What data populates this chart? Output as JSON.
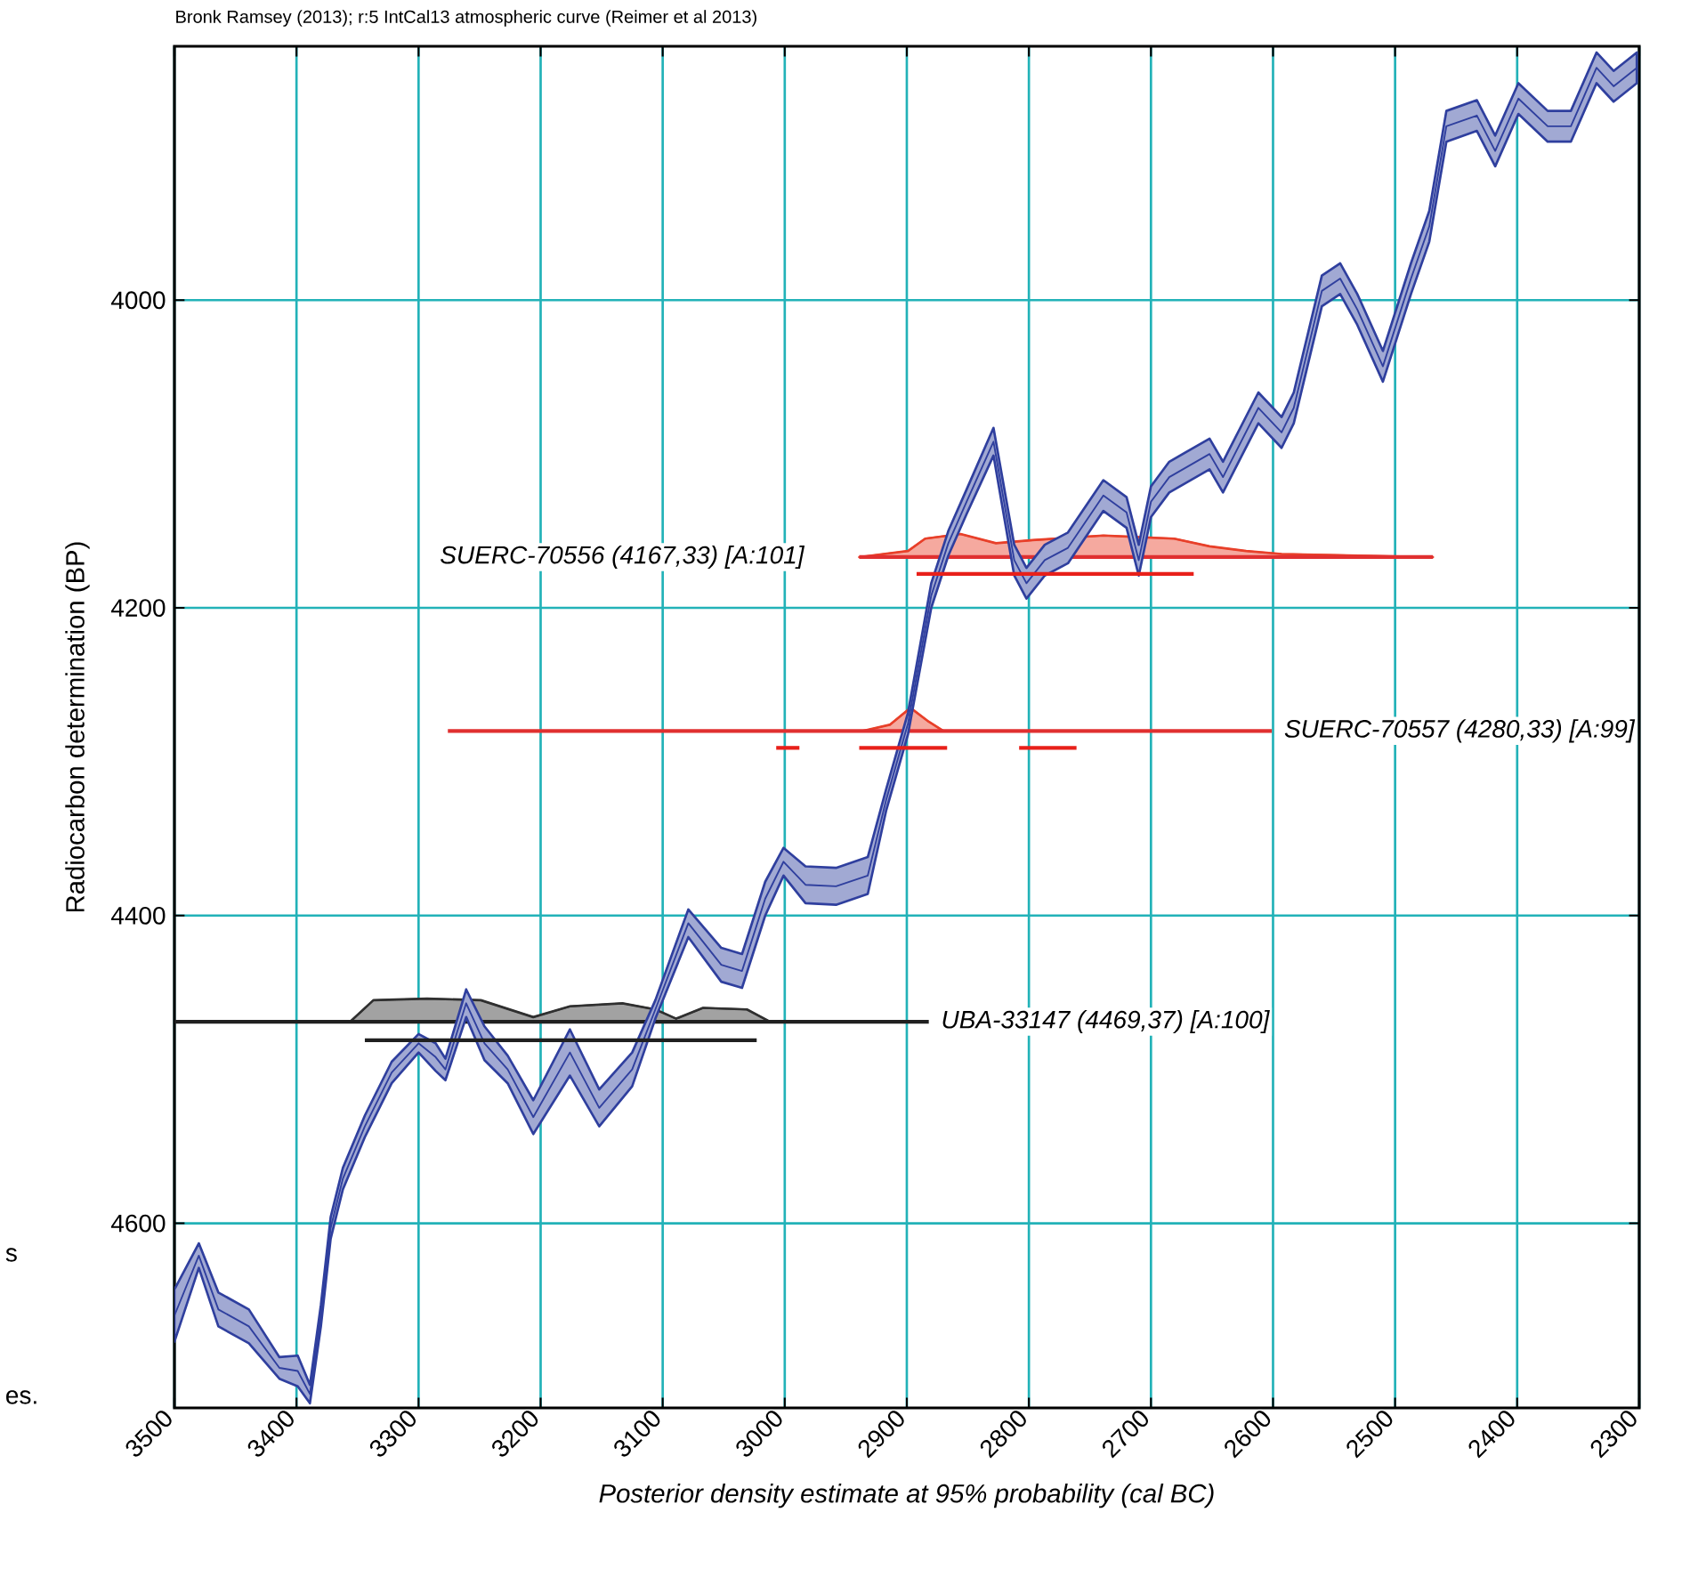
{
  "chart_data": {
    "type": "line",
    "title": "Bronk Ramsey (2013); r:5 IntCal13 atmospheric curve (Reimer et al 2013)",
    "xlabel": "Posterior density estimate at 95% probability (cal BC)",
    "ylabel": "Radiocarbon determination (BP)",
    "xlim": [
      3500,
      2300
    ],
    "xticks": [
      3500,
      3400,
      3300,
      3200,
      3100,
      3000,
      2900,
      2800,
      2700,
      2600,
      2500,
      2400,
      2300
    ],
    "ylim": [
      4720,
      3835
    ],
    "yticks": [
      4000,
      4200,
      4400,
      4600
    ],
    "grid": true,
    "annotations": [
      {
        "text": "UBA-33147 (4469,37) [A:100]",
        "x": 2882,
        "y": 4469
      },
      {
        "text": "SUERC-70557 (4280,33) [A:99]",
        "x": 2601,
        "y": 4280
      },
      {
        "text": "SUERC-70556 (4167,33) [A:101]",
        "x": 2939,
        "y": 4167
      },
      "s",
      "es."
    ],
    "series": [
      {
        "color": "#303030",
        "x": [
          3356,
          3337,
          3293,
          3249,
          3206,
          3176,
          3133,
          3106,
          3089,
          3067,
          3031,
          3012
        ],
        "values": [
          4469,
          4455,
          4454,
          4455,
          4466,
          4459,
          4457,
          4461,
          4467,
          4460,
          4461,
          4469
        ],
        "lower": [
          4469,
          4455,
          4454,
          4455,
          4466,
          4459,
          4457,
          4461,
          4467,
          4460,
          4461,
          4469
        ],
        "upper": [
          4469,
          4469,
          4469,
          4469,
          4469,
          4469,
          4469,
          4469,
          4469,
          4469,
          4469,
          4469
        ]
      },
      {
        "color": "#e8402a",
        "x": [
          2936,
          2914,
          2897,
          2882,
          2870
        ],
        "values": [
          4280,
          4276,
          4265,
          4274,
          4280
        ],
        "lower": [
          4280,
          4276,
          4265,
          4274,
          4280
        ],
        "upper": [
          4280,
          4280,
          4280,
          4280,
          4280
        ]
      },
      {
        "color": "#e8402a",
        "x": [
          2939,
          2899,
          2885,
          2856,
          2827,
          2797,
          2739,
          2681,
          2652,
          2622,
          2593,
          2469
        ],
        "values": [
          4167,
          4163,
          4155,
          4152,
          4158,
          4156,
          4153,
          4155,
          4160,
          4163,
          4165,
          4167
        ],
        "lower": [
          4167,
          4163,
          4155,
          4152,
          4158,
          4156,
          4153,
          4155,
          4160,
          4163,
          4165,
          4167
        ],
        "upper": [
          4167,
          4167,
          4167,
          4167,
          4167,
          4167,
          4167,
          4167,
          4167,
          4167,
          4167,
          4167
        ]
      },
      {
        "color": "#202020",
        "x": [
          3500,
          2882
        ],
        "values": [
          4469,
          4469
        ]
      },
      {
        "color": "#e03030",
        "x": [
          3276,
          2601
        ],
        "values": [
          4280,
          4280
        ]
      },
      {
        "color": "#e03030",
        "x": [
          2939,
          2469
        ],
        "values": [
          4167,
          4167
        ]
      },
      {
        "color": "#2f3f9e",
        "x": [
          3500,
          3480,
          3464,
          3439,
          3414,
          3399,
          3389,
          3380,
          3372,
          3362,
          3344,
          3322,
          3300,
          3286,
          3278,
          3261,
          3246,
          3227,
          3206,
          3176,
          3152,
          3125,
          3106,
          3079,
          3052,
          3035,
          3016,
          3001,
          2983,
          2958,
          2932,
          2917,
          2899,
          2880,
          2866,
          2851,
          2829,
          2812,
          2802,
          2787,
          2768,
          2739,
          2720,
          2710,
          2700,
          2685,
          2652,
          2641,
          2612,
          2593,
          2583,
          2560,
          2545,
          2531,
          2510,
          2487,
          2472,
          2458,
          2433,
          2418,
          2399,
          2375,
          2356,
          2335,
          2321,
          2302
        ],
        "values": [
          4660,
          4621,
          4656,
          4667,
          4694,
          4696,
          4711,
          4660,
          4603,
          4571,
          4537,
          4502,
          4483,
          4492,
          4500,
          4457,
          4483,
          4500,
          4531,
          4489,
          4525,
          4500,
          4461,
          4405,
          4432,
          4436,
          4389,
          4365,
          4380,
          4381,
          4374,
          4325,
          4275,
          4192,
          4158,
          4131,
          4092,
          4169,
          4184,
          4169,
          4161,
          4127,
          4138,
          4169,
          4131,
          4115,
          4100,
          4115,
          4070,
          4086,
          4070,
          3994,
          3986,
          4006,
          4043,
          3986,
          3952,
          3887,
          3880,
          3903,
          3869,
          3887,
          3887,
          3849,
          3861,
          3849
        ],
        "lower": [
          4643,
          4613,
          4645,
          4656,
          4687,
          4686,
          4705,
          4653,
          4596,
          4564,
          4530,
          4495,
          4477,
          4483,
          4493,
          4448,
          4472,
          4491,
          4520,
          4474,
          4513,
          4489,
          4455,
          4396,
          4421,
          4425,
          4378,
          4356,
          4368,
          4369,
          4362,
          4318,
          4268,
          4184,
          4150,
          4123,
          4083,
          4159,
          4174,
          4159,
          4151,
          4117,
          4128,
          4159,
          4121,
          4105,
          4090,
          4105,
          4060,
          4076,
          4060,
          3984,
          3976,
          3996,
          4033,
          3976,
          3942,
          3877,
          3870,
          3893,
          3859,
          3877,
          3877,
          3839,
          3851,
          3839
        ],
        "upper": [
          4677,
          4629,
          4667,
          4678,
          4701,
          4706,
          4717,
          4667,
          4610,
          4578,
          4544,
          4509,
          4489,
          4501,
          4507,
          4466,
          4494,
          4509,
          4542,
          4504,
          4537,
          4511,
          4467,
          4414,
          4443,
          4447,
          4400,
          4374,
          4392,
          4393,
          4386,
          4332,
          4282,
          4200,
          4166,
          4139,
          4101,
          4179,
          4194,
          4179,
          4171,
          4137,
          4148,
          4179,
          4141,
          4125,
          4110,
          4125,
          4080,
          4096,
          4080,
          4004,
          3996,
          4016,
          4053,
          3996,
          3962,
          3897,
          3890,
          3913,
          3879,
          3897,
          3897,
          3859,
          3871,
          3859
        ]
      },
      {
        "color": "#202020",
        "x": [
          3344,
          3023
        ],
        "values": [
          4481,
          4481
        ]
      },
      {
        "color": "#e8201a",
        "x": [
          3007,
          2988
        ],
        "values": [
          4291,
          4291
        ]
      },
      {
        "color": "#e8201a",
        "x": [
          2939,
          2867
        ],
        "values": [
          4291,
          4291
        ]
      },
      {
        "color": "#e8201a",
        "x": [
          2808,
          2761
        ],
        "values": [
          4291,
          4291
        ]
      },
      {
        "color": "#e8201a",
        "x": [
          2892,
          2665
        ],
        "values": [
          4178,
          4178
        ]
      }
    ]
  }
}
